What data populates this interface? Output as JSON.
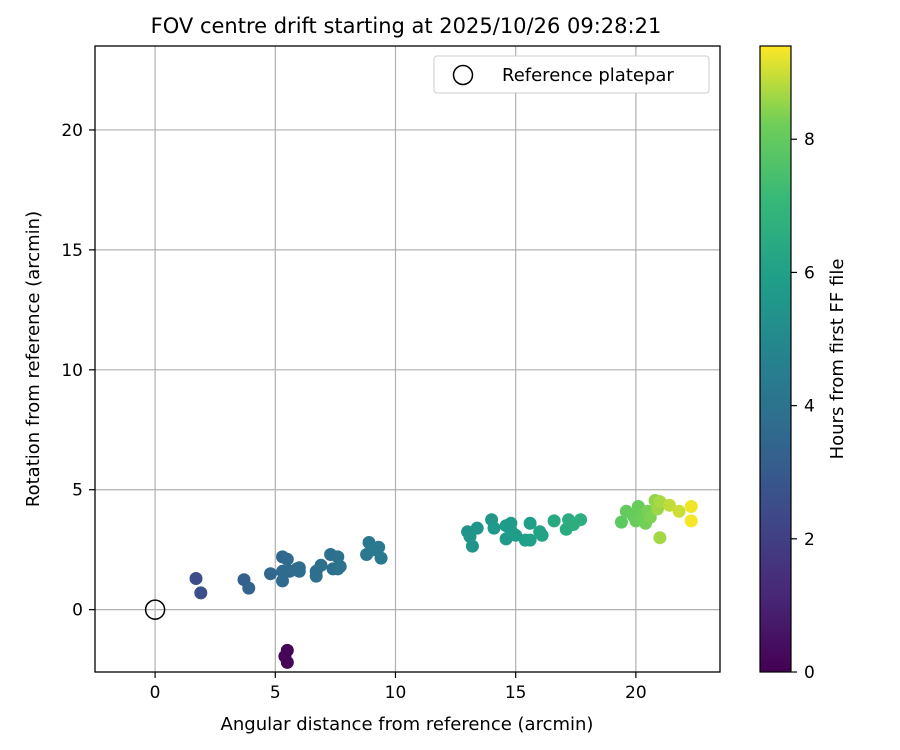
{
  "chart_data": {
    "type": "scatter",
    "title": "FOV centre drift starting at 2025/10/26 09:28:21",
    "xlabel": "Angular distance from reference (arcmin)",
    "ylabel": "Rotation from reference (arcmin)",
    "xlim": [
      -2.5,
      23.5
    ],
    "ylim": [
      -2.6,
      23.5
    ],
    "xticks": [
      0,
      5,
      10,
      15,
      20
    ],
    "yticks": [
      0,
      5,
      10,
      15,
      20
    ],
    "grid": true,
    "legend": {
      "placement": "top-right",
      "entries": [
        "Reference platepar"
      ]
    },
    "reference_point": {
      "x": 0,
      "y": 0,
      "label": "Reference platepar"
    },
    "colorbar": {
      "label": "Hours from first FF file",
      "colormap": "viridis",
      "range": [
        0,
        9.4
      ],
      "ticks": [
        0,
        2,
        4,
        6,
        8
      ]
    },
    "points": [
      {
        "x": 5.5,
        "y": -1.7,
        "c": 0.1
      },
      {
        "x": 5.4,
        "y": -1.95,
        "c": 0.12
      },
      {
        "x": 5.5,
        "y": -2.2,
        "c": 0.15
      },
      {
        "x": 1.7,
        "y": 1.3,
        "c": 2.5
      },
      {
        "x": 1.9,
        "y": 0.7,
        "c": 2.6
      },
      {
        "x": 3.7,
        "y": 1.25,
        "c": 3.2
      },
      {
        "x": 3.9,
        "y": 0.9,
        "c": 3.3
      },
      {
        "x": 4.8,
        "y": 1.5,
        "c": 3.5
      },
      {
        "x": 5.3,
        "y": 2.2,
        "c": 3.5
      },
      {
        "x": 5.5,
        "y": 2.1,
        "c": 3.6
      },
      {
        "x": 5.3,
        "y": 1.6,
        "c": 3.6
      },
      {
        "x": 5.3,
        "y": 1.2,
        "c": 3.6
      },
      {
        "x": 5.6,
        "y": 1.6,
        "c": 3.65
      },
      {
        "x": 5.9,
        "y": 1.7,
        "c": 3.7
      },
      {
        "x": 6.0,
        "y": 1.6,
        "c": 3.7
      },
      {
        "x": 6.0,
        "y": 1.75,
        "c": 3.75
      },
      {
        "x": 6.7,
        "y": 1.6,
        "c": 3.8
      },
      {
        "x": 6.7,
        "y": 1.4,
        "c": 3.85
      },
      {
        "x": 6.9,
        "y": 1.85,
        "c": 3.85
      },
      {
        "x": 7.3,
        "y": 2.3,
        "c": 3.9
      },
      {
        "x": 7.4,
        "y": 1.7,
        "c": 3.9
      },
      {
        "x": 7.6,
        "y": 1.7,
        "c": 3.95
      },
      {
        "x": 7.6,
        "y": 2.2,
        "c": 3.95
      },
      {
        "x": 7.7,
        "y": 1.8,
        "c": 4.0
      },
      {
        "x": 8.8,
        "y": 2.3,
        "c": 4.2
      },
      {
        "x": 8.9,
        "y": 2.8,
        "c": 4.25
      },
      {
        "x": 9.1,
        "y": 2.5,
        "c": 4.3
      },
      {
        "x": 9.3,
        "y": 2.6,
        "c": 4.3
      },
      {
        "x": 9.4,
        "y": 2.15,
        "c": 4.35
      },
      {
        "x": 13.0,
        "y": 3.25,
        "c": 5.4
      },
      {
        "x": 13.1,
        "y": 3.05,
        "c": 5.45
      },
      {
        "x": 13.4,
        "y": 3.4,
        "c": 5.5
      },
      {
        "x": 13.2,
        "y": 2.65,
        "c": 5.5
      },
      {
        "x": 14.0,
        "y": 3.75,
        "c": 5.6
      },
      {
        "x": 14.1,
        "y": 3.4,
        "c": 5.65
      },
      {
        "x": 14.6,
        "y": 3.5,
        "c": 5.7
      },
      {
        "x": 14.8,
        "y": 3.6,
        "c": 5.75
      },
      {
        "x": 14.6,
        "y": 2.95,
        "c": 5.75
      },
      {
        "x": 14.8,
        "y": 3.3,
        "c": 5.8
      },
      {
        "x": 15.0,
        "y": 3.1,
        "c": 5.85
      },
      {
        "x": 15.4,
        "y": 2.9,
        "c": 5.9
      },
      {
        "x": 15.6,
        "y": 3.6,
        "c": 5.95
      },
      {
        "x": 15.6,
        "y": 2.9,
        "c": 6.0
      },
      {
        "x": 16.0,
        "y": 3.25,
        "c": 6.05
      },
      {
        "x": 16.1,
        "y": 3.1,
        "c": 6.1
      },
      {
        "x": 16.6,
        "y": 3.7,
        "c": 6.4
      },
      {
        "x": 17.1,
        "y": 3.35,
        "c": 6.5
      },
      {
        "x": 17.2,
        "y": 3.75,
        "c": 6.55
      },
      {
        "x": 17.4,
        "y": 3.55,
        "c": 6.6
      },
      {
        "x": 17.7,
        "y": 3.75,
        "c": 6.65
      },
      {
        "x": 19.4,
        "y": 3.65,
        "c": 7.9
      },
      {
        "x": 19.6,
        "y": 4.1,
        "c": 8.0
      },
      {
        "x": 19.9,
        "y": 3.9,
        "c": 8.05
      },
      {
        "x": 20.0,
        "y": 3.7,
        "c": 8.1
      },
      {
        "x": 20.1,
        "y": 4.3,
        "c": 8.1
      },
      {
        "x": 20.2,
        "y": 3.95,
        "c": 8.15
      },
      {
        "x": 20.3,
        "y": 3.75,
        "c": 8.2
      },
      {
        "x": 20.4,
        "y": 3.6,
        "c": 8.25
      },
      {
        "x": 20.5,
        "y": 4.1,
        "c": 8.3
      },
      {
        "x": 20.6,
        "y": 3.85,
        "c": 8.35
      },
      {
        "x": 20.8,
        "y": 4.55,
        "c": 8.5
      },
      {
        "x": 20.9,
        "y": 4.2,
        "c": 8.6
      },
      {
        "x": 21.0,
        "y": 3.0,
        "c": 8.65
      },
      {
        "x": 21.0,
        "y": 4.5,
        "c": 8.7
      },
      {
        "x": 21.4,
        "y": 4.35,
        "c": 8.9
      },
      {
        "x": 21.8,
        "y": 4.1,
        "c": 9.0
      },
      {
        "x": 22.3,
        "y": 4.3,
        "c": 9.3
      },
      {
        "x": 22.3,
        "y": 3.7,
        "c": 9.35
      }
    ]
  }
}
